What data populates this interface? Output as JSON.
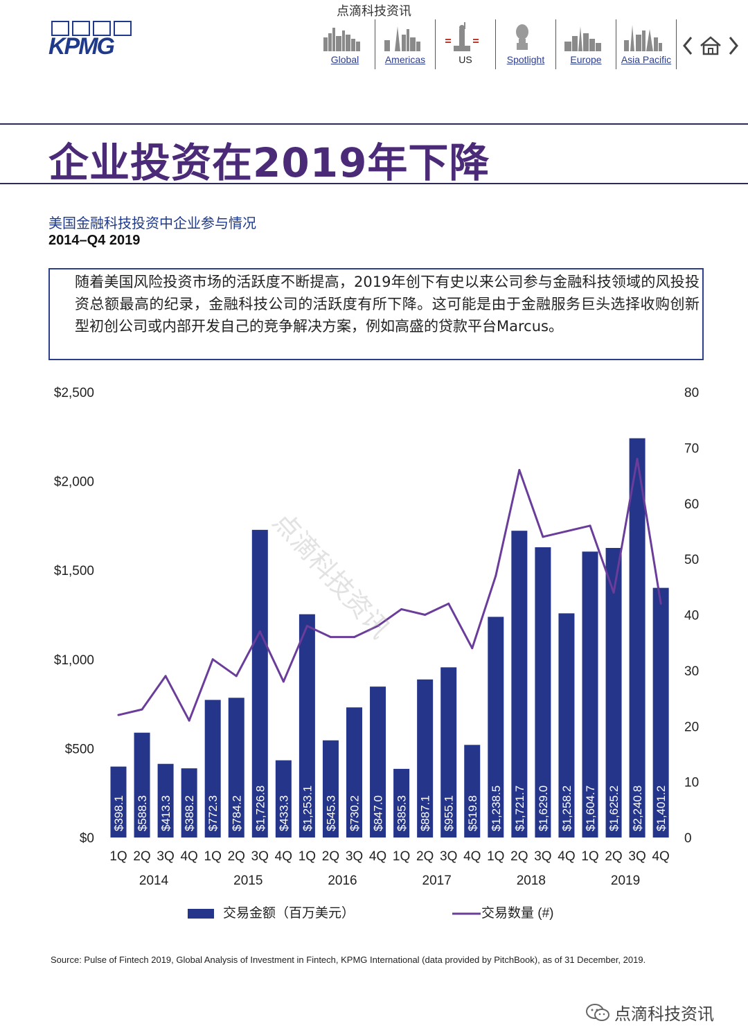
{
  "watermark_top": "点滴科技资讯",
  "logo": {
    "text": "KPMG"
  },
  "nav": {
    "items": [
      {
        "label": "Global",
        "icon": "global-skyline-icon"
      },
      {
        "label": "Americas",
        "icon": "americas-skyline-icon"
      },
      {
        "label": "US",
        "icon": "us-statue-icon"
      },
      {
        "label": "Spotlight",
        "icon": "spotlight-bust-icon"
      },
      {
        "label": "Europe",
        "icon": "europe-skyline-icon"
      },
      {
        "label": "Asia Pacific",
        "icon": "asia-pacific-skyline-icon"
      }
    ],
    "arrows": [
      "chevron-left-icon",
      "home-icon",
      "chevron-right-icon"
    ]
  },
  "title": "企业投资在2019年下降",
  "subtitle": "美国金融科技投资中企业参与情况",
  "period": "2014–Q4 2019",
  "description": "随着美国风险投资市场的活跃度不断提高，2019年创下有史以来公司参与金融科技领域的风投投资总额最高的纪录，金融科技公司的活跃度有所下降。这可能是由于金融服务巨头选择收购创新型初创公司或内部开发自己的竞争解决方案，例如高盛的贷款平台Marcus。",
  "chart_data": {
    "type": "bar",
    "quarters": [
      "1Q",
      "2Q",
      "3Q",
      "4Q",
      "1Q",
      "2Q",
      "3Q",
      "4Q",
      "1Q",
      "2Q",
      "3Q",
      "4Q",
      "1Q",
      "2Q",
      "3Q",
      "4Q",
      "1Q",
      "2Q",
      "3Q",
      "4Q",
      "1Q",
      "2Q",
      "3Q",
      "4Q"
    ],
    "years": [
      "2014",
      "2015",
      "2016",
      "2017",
      "2018",
      "2019"
    ],
    "series": [
      {
        "name": "交易金额（百万美元）",
        "type": "bar",
        "axis": "left",
        "values": [
          398.1,
          588.3,
          413.3,
          388.2,
          772.3,
          784.2,
          1726.8,
          433.3,
          1253.1,
          545.3,
          730.2,
          847.0,
          385.3,
          887.1,
          955.1,
          519.8,
          1238.5,
          1721.7,
          1629.0,
          1258.2,
          1604.7,
          1625.2,
          2240.8,
          1401.2
        ],
        "labels": [
          "$398.1",
          "$588.3",
          "$413.3",
          "$388.2",
          "$772.3",
          "$784.2",
          "$1,726.8",
          "$433.3",
          "$1,253.1",
          "$545.3",
          "$730.2",
          "$847.0",
          "$385.3",
          "$887.1",
          "$955.1",
          "$519.8",
          "$1,238.5",
          "$1,721.7",
          "$1,629.0",
          "$1,258.2",
          "$1,604.7",
          "$1,625.2",
          "$2,240.8",
          "$1,401.2"
        ]
      },
      {
        "name": "交易数量 (#)",
        "type": "line",
        "axis": "right",
        "values": [
          22,
          23,
          29,
          21,
          32,
          29,
          37,
          28,
          38,
          36,
          36,
          38,
          41,
          40,
          42,
          34,
          47,
          66,
          54,
          55,
          56,
          44,
          68,
          42
        ]
      }
    ],
    "y_left": {
      "ticks": [
        "$0",
        "$500",
        "$1,000",
        "$1,500",
        "$2,000",
        "$2,500"
      ],
      "range": [
        0,
        2500
      ]
    },
    "y_right": {
      "ticks": [
        "0",
        "10",
        "20",
        "30",
        "40",
        "50",
        "60",
        "70",
        "80"
      ],
      "range": [
        0,
        80
      ]
    },
    "colors": {
      "bar": "#25358a",
      "line": "#6a3d9a"
    },
    "legend_position": "bottom",
    "grid": false
  },
  "chart_watermark": "点滴科技资讯",
  "source": "Source: Pulse of Fintech 2019, Global Analysis of Investment in Fintech, KPMG International (data provided by PitchBook), as of 31 December, 2019.",
  "footer": {
    "wechat_text": "点滴科技资讯"
  }
}
